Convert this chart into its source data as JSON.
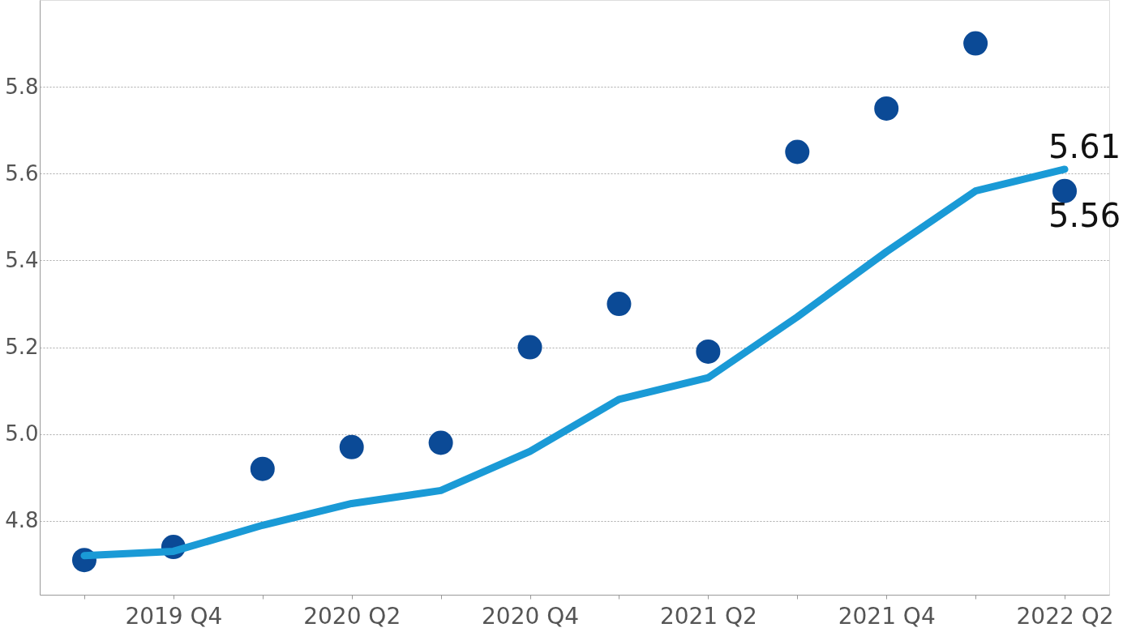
{
  "chart_data": {
    "type": "line",
    "categories": [
      null,
      "2019 Q4",
      null,
      "2020 Q2",
      null,
      "2020 Q4",
      null,
      "2021 Q2",
      null,
      "2021 Q4",
      null,
      "2022 Q2"
    ],
    "series": [
      {
        "color": "#1a9ad6",
        "values": [
          4.72,
          4.73,
          4.79,
          4.84,
          4.87,
          4.96,
          5.08,
          5.13,
          5.27,
          5.42,
          5.56,
          5.61
        ],
        "value_labels": [
          null,
          null,
          null,
          null,
          null,
          null,
          null,
          null,
          null,
          null,
          null,
          "5.61"
        ]
      },
      {
        "type": "scatter",
        "marker": "circle",
        "color": "#0b4a96",
        "values": [
          4.71,
          4.74,
          4.92,
          4.97,
          4.98,
          5.2,
          5.3,
          5.19,
          5.65,
          5.75,
          5.9,
          5.56
        ],
        "value_labels": [
          null,
          null,
          null,
          null,
          null,
          null,
          null,
          null,
          null,
          null,
          null,
          "5.56"
        ]
      }
    ],
    "ylim": [
      4.63,
      6.0
    ],
    "yticks": [
      {
        "value": 4.8,
        "label": "4.8"
      },
      {
        "value": 5.0,
        "label": "5.0"
      },
      {
        "value": 5.2,
        "label": "5.2"
      },
      {
        "value": 5.4,
        "label": "5.4"
      },
      {
        "value": 5.6,
        "label": "5.6"
      },
      {
        "value": 5.8,
        "label": "5.8"
      }
    ],
    "grid": "y",
    "line_style": "solid"
  }
}
